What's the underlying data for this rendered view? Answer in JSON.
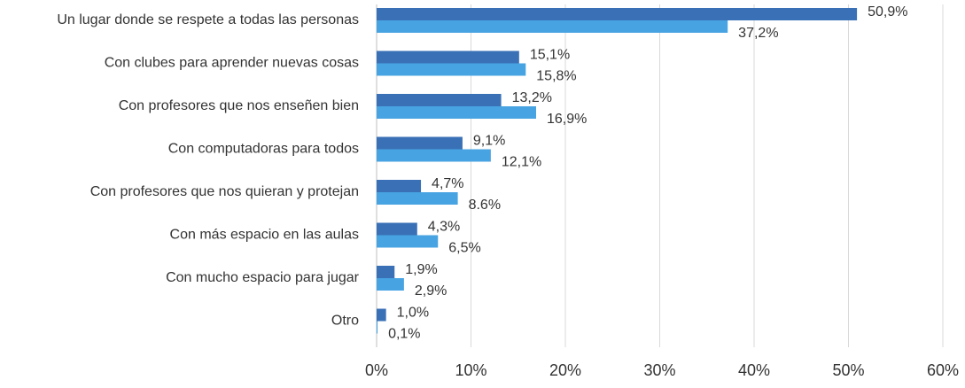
{
  "chart_data": {
    "type": "bar",
    "orientation": "horizontal",
    "categories": [
      "Un lugar donde se respete a todas las personas",
      "Con clubes para aprender nuevas cosas",
      "Con profesores que nos enseñen bien",
      "Con computadoras para todos",
      "Con profesores que nos quieran y protejan",
      "Con más espacio en las aulas",
      "Con mucho espacio para jugar",
      "Otro"
    ],
    "series": [
      {
        "color": "#3a70b6",
        "values": [
          50.9,
          15.1,
          13.2,
          9.1,
          4.7,
          4.3,
          1.9,
          1.0
        ],
        "value_labels": [
          "50,9%",
          "15,1%",
          "13,2%",
          "9,1%",
          "4,7%",
          "4,3%",
          "1,9%",
          "1,0%"
        ]
      },
      {
        "color": "#47a3e2",
        "values": [
          37.2,
          15.8,
          16.9,
          12.1,
          8.6,
          6.5,
          2.9,
          0.1
        ],
        "value_labels": [
          "37,2%",
          "15,8%",
          "16,9%",
          "12,1%",
          "8.6%",
          "6,5%",
          "2,9%",
          "0,1%"
        ]
      }
    ],
    "xlim": [
      0,
      60
    ],
    "xticks": [
      {
        "value": 0,
        "label": "0%"
      },
      {
        "value": 10,
        "label": "10%"
      },
      {
        "value": 20,
        "label": "20%"
      },
      {
        "value": 30,
        "label": "30%"
      },
      {
        "value": 40,
        "label": "40%"
      },
      {
        "value": 50,
        "label": "50%"
      },
      {
        "value": 60,
        "label": "60%"
      }
    ],
    "grid": true
  }
}
